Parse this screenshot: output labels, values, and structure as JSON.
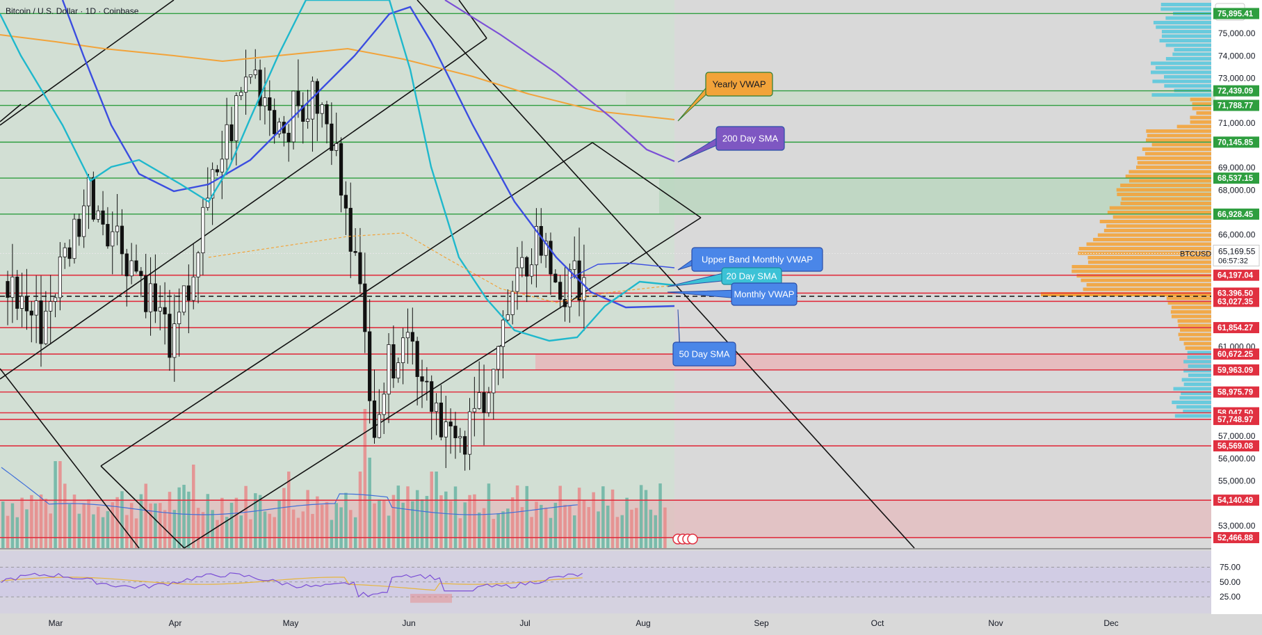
{
  "header": {
    "title": "Bitcoin / U.S. Dollar · 1D · Coinbase",
    "currency": "USD"
  },
  "chart_data": {
    "type": "candlestick",
    "symbol": "BTCUSD",
    "price_range": [
      52000,
      76500
    ],
    "y_ticks": [
      75000,
      74000,
      73000,
      71000,
      69000,
      68000,
      66000,
      61000,
      57000,
      56000,
      55000,
      53000
    ],
    "x_months": [
      "Mar",
      "Apr",
      "May",
      "Jun",
      "Jul",
      "Aug",
      "Sep",
      "Oct",
      "Nov",
      "Dec"
    ],
    "current_price": {
      "symbol": "BTCUSD",
      "value": "65,169.55",
      "countdown": "06:57:32",
      "raw": 65169.55
    },
    "levels": [
      {
        "label": "75,895.41",
        "value": 75895.41,
        "type": "resistance"
      },
      {
        "label": "72,439.09",
        "value": 72439.09,
        "type": "resistance"
      },
      {
        "label": "71,788.77",
        "value": 71788.77,
        "type": "resistance"
      },
      {
        "label": "70,145.85",
        "value": 70145.85,
        "type": "resistance"
      },
      {
        "label": "68,537.15",
        "value": 68537.15,
        "type": "resistance"
      },
      {
        "label": "66,928.45",
        "value": 66928.45,
        "type": "resistance"
      },
      {
        "label": "64,197.04",
        "value": 64197.04,
        "type": "support"
      },
      {
        "label": "63,396.50",
        "value": 63396.5,
        "type": "support"
      },
      {
        "label": "63,027.35",
        "value": 63027.35,
        "type": "support"
      },
      {
        "label": "61,854.27",
        "value": 61854.27,
        "type": "support"
      },
      {
        "label": "60,672.25",
        "value": 60672.25,
        "type": "support"
      },
      {
        "label": "59,963.09",
        "value": 59963.09,
        "type": "support"
      },
      {
        "label": "58,975.79",
        "value": 58975.79,
        "type": "support"
      },
      {
        "label": "58,047.50",
        "value": 58047.5,
        "type": "support"
      },
      {
        "label": "57,748.97",
        "value": 57748.97,
        "type": "support"
      },
      {
        "label": "56,569.08",
        "value": 56569.08,
        "type": "support"
      },
      {
        "label": "54,140.49",
        "value": 54140.49,
        "type": "support"
      },
      {
        "label": "52,466.88",
        "value": 52466.88,
        "type": "support"
      }
    ],
    "callouts": [
      {
        "text": "Yearly VWAP",
        "color": "#f2a33a"
      },
      {
        "text": "200 Day SMA",
        "color": "#7e57c2"
      },
      {
        "text": "Upper Band Monthly VWAP",
        "color": "#4a86e8"
      },
      {
        "text": "20 Day SMA",
        "color": "#3cc2d6"
      },
      {
        "text": "Monthly VWAP",
        "color": "#4a86e8"
      },
      {
        "text": "50 Day SMA",
        "color": "#4a86e8"
      }
    ],
    "rsi": {
      "ticks": [
        75,
        50,
        25
      ],
      "labels": [
        "75.00",
        "50.00",
        "25.00"
      ]
    }
  }
}
